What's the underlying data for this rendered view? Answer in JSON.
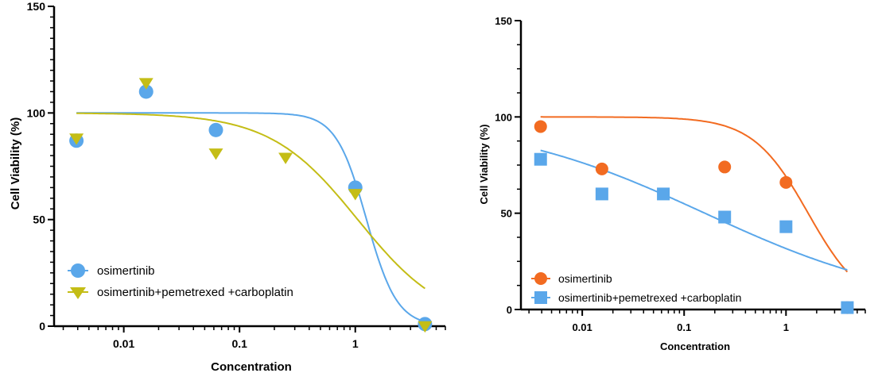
{
  "chart_data": [
    {
      "type": "scatter",
      "title": "",
      "xlabel": "Concentration",
      "ylabel": "Cell Viability (%)",
      "xscale": "log",
      "xlim": [
        0.0025,
        6
      ],
      "ylim": [
        0,
        150
      ],
      "x_ticks": [
        0.01,
        0.1,
        1
      ],
      "x_tick_labels": [
        "0.01",
        "0.1",
        "1"
      ],
      "y_ticks": [
        0,
        50,
        100,
        150
      ],
      "y_tick_labels": [
        "0",
        "50",
        "100",
        "150"
      ],
      "legend_position": "bottom-left",
      "series": [
        {
          "name": "osimertinib",
          "marker": "circle",
          "color": "#5aa7ea",
          "x": [
            0.0039,
            0.0156,
            0.0625,
            1,
            4
          ],
          "y": [
            87,
            110,
            92,
            65,
            1
          ],
          "fit": {
            "top": 100,
            "bottom": 0,
            "ec50": 1.25,
            "hill": 3.3
          }
        },
        {
          "name": "osimertinib+pemetrexed +carboplatin",
          "marker": "triangle-down",
          "color": "#c4bd16",
          "x": [
            0.0039,
            0.0156,
            0.0625,
            0.25,
            1,
            4
          ],
          "y": [
            88,
            114,
            81,
            79,
            62,
            0
          ],
          "fit": {
            "top": 100,
            "bottom": 0,
            "ec50": 1.05,
            "hill": 1.15
          }
        }
      ]
    },
    {
      "type": "scatter",
      "title": "",
      "xlabel": "Concentration",
      "ylabel": "Cell Viability (%)",
      "xscale": "log",
      "xlim": [
        0.0025,
        6
      ],
      "ylim": [
        0,
        150
      ],
      "x_ticks": [
        0.01,
        0.1,
        1
      ],
      "x_tick_labels": [
        "0.01",
        "0.1",
        "1"
      ],
      "y_ticks": [
        0,
        50,
        100,
        150
      ],
      "y_tick_labels": [
        "0",
        "50",
        "100",
        "150"
      ],
      "legend_position": "bottom-left",
      "series": [
        {
          "name": "osimertinib",
          "marker": "circle",
          "color": "#f26b21",
          "x": [
            0.0039,
            0.0156,
            0.25,
            1,
            4
          ],
          "y": [
            95,
            73,
            74,
            66,
            1
          ],
          "fit": {
            "top": 100,
            "bottom": 0,
            "ec50": 1.65,
            "hill": 1.6
          }
        },
        {
          "name": "osimertinib+pemetrexed +carboplatin",
          "marker": "square",
          "color": "#5aa7ea",
          "x": [
            0.0039,
            0.0156,
            0.0625,
            0.25,
            1,
            4
          ],
          "y": [
            78,
            60,
            60,
            48,
            43,
            1
          ],
          "fit": {
            "top": 100,
            "bottom": 0,
            "ec50": 0.16,
            "hill": 0.42
          }
        }
      ]
    }
  ]
}
